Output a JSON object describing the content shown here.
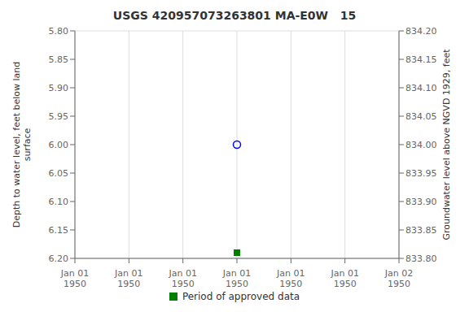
{
  "chart_data": {
    "type": "scatter",
    "title": "USGS 420957073263801 MA-E0W   15",
    "categories": [
      "Jan 01\n1950",
      "Jan 01\n1950",
      "Jan 01\n1950",
      "Jan 01\n1950",
      "Jan 01\n1950",
      "Jan 01\n1950",
      "Jan 02\n1950"
    ],
    "series": [
      {
        "color": "#0000ff",
        "marker": "circle",
        "values": [
          null,
          null,
          null,
          6.0,
          null,
          null,
          null
        ]
      },
      {
        "name": "Period of approved data",
        "color": "#008000",
        "marker": "square",
        "values": [
          null,
          null,
          null,
          6.19,
          null,
          null,
          null
        ]
      }
    ],
    "ylabel": "Depth to water level, feet below land\nsurface",
    "y2label": "Groundwater level above NGVD 1929, feet",
    "ylim": [
      6.2,
      5.8
    ],
    "yticks": [
      {
        "value": 5.8,
        "label": "5.80"
      },
      5.85,
      {
        "value": 5.9,
        "label": "5.90"
      },
      5.95,
      {
        "value": 6,
        "label": "6.00"
      },
      6.05,
      {
        "value": 6.1,
        "label": "6.10"
      },
      6.15,
      {
        "value": 6.2,
        "label": "6.20"
      }
    ],
    "y2lim": [
      833.8,
      834.2
    ],
    "y2ticks": [
      {
        "value": 834.2,
        "label": "834.20"
      },
      834.15,
      {
        "value": 834.1,
        "label": "834.10"
      },
      834.05,
      {
        "value": 834,
        "label": "834.00"
      },
      833.95,
      {
        "value": 833.9,
        "label": "833.90"
      },
      833.85,
      {
        "value": 833.8,
        "label": "833.80"
      }
    ],
    "grid": true,
    "legend": "bottom"
  }
}
